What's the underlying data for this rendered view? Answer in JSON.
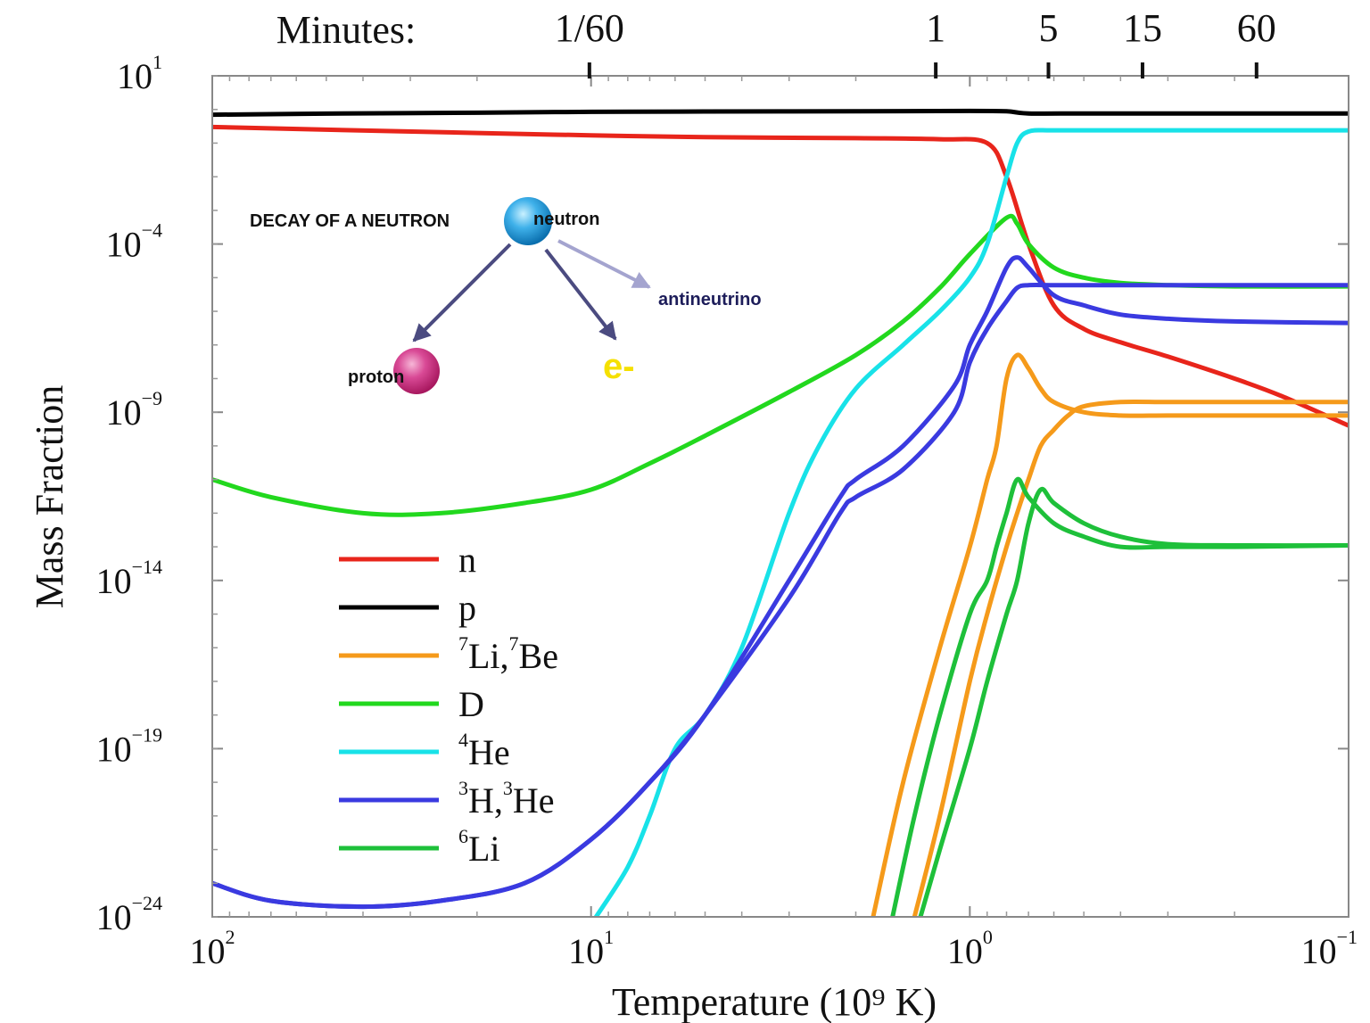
{
  "chart_data": {
    "type": "line",
    "xlabel": "Temperature (10⁹ K)",
    "ylabel": "Mass Fraction",
    "x_scale": "log",
    "y_scale": "log",
    "x_reversed": true,
    "xlim": [
      100,
      0.1
    ],
    "ylim": [
      1e-24,
      10
    ],
    "x_ticks": [
      {
        "value": 100,
        "base": "10",
        "exp": "2"
      },
      {
        "value": 10,
        "base": "10",
        "exp": "1"
      },
      {
        "value": 1,
        "base": "10",
        "exp": "0"
      },
      {
        "value": 0.1,
        "base": "10",
        "exp": "−1"
      }
    ],
    "y_ticks": [
      {
        "value": 10,
        "base": "10",
        "exp": "1"
      },
      {
        "value": 0.0001,
        "base": "10",
        "exp": "−4"
      },
      {
        "value": 1e-09,
        "base": "10",
        "exp": "−9"
      },
      {
        "value": 1e-14,
        "base": "10",
        "exp": "−14"
      },
      {
        "value": 1e-19,
        "base": "10",
        "exp": "−19"
      },
      {
        "value": 1e-24,
        "base": "10",
        "exp": "−24"
      }
    ],
    "top_axis": {
      "title": "Minutes:",
      "ticks": [
        {
          "label": "1/60",
          "temperature": 10.1
        },
        {
          "label": "1",
          "temperature": 1.23
        },
        {
          "label": "5",
          "temperature": 0.62
        },
        {
          "label": "15",
          "temperature": 0.35
        },
        {
          "label": "60",
          "temperature": 0.175
        }
      ]
    },
    "grid": false,
    "legend_position": "bottom-left",
    "series": [
      {
        "name": "n",
        "color": "#e8251b",
        "x": [
          100,
          50,
          20,
          10,
          5,
          2,
          1.2,
          0.9,
          0.8,
          0.7,
          0.6,
          0.5,
          0.4,
          0.3,
          0.2,
          0.15,
          0.1
        ],
        "y": [
          0.3,
          0.25,
          0.2,
          0.17,
          0.15,
          0.14,
          0.13,
          0.1,
          0.01,
          0.0001,
          1.5e-06,
          3e-07,
          1.2e-07,
          4.5e-08,
          1e-08,
          3e-09,
          4e-10
        ]
      },
      {
        "name": "p",
        "color": "#000000",
        "x": [
          100,
          50,
          20,
          10,
          5,
          2,
          1,
          0.8,
          0.7,
          0.5,
          0.3,
          0.1
        ],
        "y": [
          0.7,
          0.75,
          0.8,
          0.85,
          0.87,
          0.88,
          0.9,
          0.88,
          0.76,
          0.76,
          0.76,
          0.76
        ]
      },
      {
        "name": "⁷Li,⁷Be",
        "color": "#f59a1a",
        "x": [
          1.8,
          1.5,
          1.2,
          1.0,
          0.9,
          0.85,
          0.8,
          0.75,
          0.7,
          0.65,
          0.6,
          0.5,
          0.4,
          0.3,
          0.2,
          0.1
        ],
        "y": [
          1e-24,
          1e-20,
          1e-16,
          1e-13,
          1e-11,
          1e-10,
          1e-08,
          5e-08,
          2e-08,
          5e-09,
          2e-09,
          1e-09,
          8e-10,
          8e-10,
          8e-10,
          8e-10
        ]
      },
      {
        "name": "⁷Li,⁷Be",
        "color": "#f59a1a",
        "x": [
          1.4,
          1.2,
          1.0,
          0.9,
          0.8,
          0.75,
          0.7,
          0.65,
          0.6,
          0.55,
          0.5,
          0.4,
          0.3,
          0.2,
          0.1
        ],
        "y": [
          1e-24,
          1e-21,
          1e-17,
          1e-15,
          1e-13,
          1e-12,
          1e-11,
          1e-10,
          3e-10,
          8e-10,
          1.5e-09,
          2e-09,
          2e-09,
          2e-09,
          2e-09
        ]
      },
      {
        "name": "D",
        "color": "#22d81e",
        "x": [
          100,
          70,
          40,
          25,
          15,
          10,
          7,
          5,
          3,
          2,
          1.5,
          1.2,
          1,
          0.8,
          0.75,
          0.7,
          0.6,
          0.5,
          0.4,
          0.3,
          0.2,
          0.1
        ],
        "y": [
          1e-11,
          3e-12,
          1e-12,
          1e-12,
          2e-12,
          5e-12,
          3e-11,
          2e-10,
          4e-09,
          5e-08,
          5e-07,
          5e-06,
          5e-05,
          0.0006,
          0.0004,
          0.0001,
          2e-05,
          1e-05,
          7e-06,
          6e-06,
          5.5e-06,
          5.5e-06
        ]
      },
      {
        "name": "⁴He",
        "color": "#18e2e8",
        "x": [
          9.7,
          8,
          7,
          6,
          5,
          4,
          3,
          2.5,
          2,
          1.5,
          1.2,
          1,
          0.9,
          0.8,
          0.75,
          0.7,
          0.6,
          0.4,
          0.2,
          0.1
        ],
        "y": [
          1e-24,
          3e-23,
          1e-21,
          1e-19,
          1e-18,
          1e-16,
          1e-12,
          1e-10,
          5e-09,
          1e-07,
          1e-06,
          1e-05,
          0.0001,
          0.01,
          0.1,
          0.22,
          0.24,
          0.24,
          0.24,
          0.24
        ]
      },
      {
        "name": "³H,³He",
        "color": "#3a3ae0",
        "x": [
          100,
          70,
          40,
          25,
          15,
          10,
          7,
          5,
          3,
          2.2,
          2,
          1.5,
          1.1,
          1.0,
          0.9,
          0.8,
          0.75,
          0.7,
          0.6,
          0.5,
          0.4,
          0.3,
          0.2,
          0.1
        ],
        "y": [
          1e-23,
          3e-24,
          2e-24,
          3e-24,
          1e-23,
          2e-22,
          1e-20,
          1e-18,
          1e-14,
          3e-12,
          1e-11,
          1e-10,
          6e-09,
          1e-07,
          1e-06,
          2e-05,
          4e-05,
          2e-05,
          3e-06,
          1.5e-06,
          8e-07,
          6e-07,
          5e-07,
          4.5e-07
        ]
      },
      {
        "name": "³H,³He",
        "color": "#3a3ae0",
        "x": [
          100,
          70,
          40,
          25,
          15,
          10,
          7,
          5,
          3,
          2.2,
          2,
          1.5,
          1.1,
          1.0,
          0.9,
          0.8,
          0.75,
          0.7,
          0.6,
          0.5,
          0.4,
          0.3,
          0.2,
          0.1
        ],
        "y": [
          1e-23,
          3e-24,
          2e-24,
          3e-24,
          1e-23,
          2e-22,
          1e-20,
          1e-18,
          3e-15,
          1e-12,
          3e-12,
          2e-11,
          1e-09,
          3e-08,
          3e-07,
          2e-06,
          5e-06,
          6e-06,
          6e-06,
          6e-06,
          6e-06,
          6e-06,
          6e-06,
          6e-06
        ]
      },
      {
        "name": "⁶Li",
        "color": "#1ec03a",
        "x": [
          1.6,
          1.4,
          1.2,
          1.0,
          0.9,
          0.85,
          0.8,
          0.75,
          0.7,
          0.6,
          0.5,
          0.4,
          0.3,
          0.2,
          0.1
        ],
        "y": [
          1e-24,
          1e-21,
          1e-18,
          1e-15,
          1e-14,
          1e-13,
          1e-12,
          1e-11,
          3e-12,
          5e-13,
          2e-13,
          1e-13,
          1e-13,
          1e-13,
          1.1e-13
        ]
      },
      {
        "name": "⁶Li",
        "color": "#1ec03a",
        "x": [
          1.35,
          1.2,
          1.0,
          0.9,
          0.8,
          0.75,
          0.7,
          0.65,
          0.6,
          0.5,
          0.4,
          0.3,
          0.2,
          0.1
        ],
        "y": [
          1e-24,
          1e-22,
          1e-19,
          1e-17,
          1e-15,
          1e-14,
          5e-13,
          5e-12,
          2e-12,
          5e-13,
          2e-13,
          1.2e-13,
          1.1e-13,
          1.1e-13
        ]
      }
    ],
    "legend": [
      {
        "color": "#e8251b",
        "parts": [
          {
            "t": "n"
          }
        ]
      },
      {
        "color": "#000000",
        "parts": [
          {
            "t": "p"
          }
        ]
      },
      {
        "color": "#f59a1a",
        "parts": [
          {
            "t": "7",
            "sup": true
          },
          {
            "t": "Li,"
          },
          {
            "t": "7",
            "sup": true
          },
          {
            "t": "Be"
          }
        ]
      },
      {
        "color": "#22d81e",
        "parts": [
          {
            "t": "D"
          }
        ]
      },
      {
        "color": "#18e2e8",
        "parts": [
          {
            "t": "4",
            "sup": true
          },
          {
            "t": "He"
          }
        ]
      },
      {
        "color": "#3a3ae0",
        "parts": [
          {
            "t": "3",
            "sup": true
          },
          {
            "t": "H,"
          },
          {
            "t": "3",
            "sup": true
          },
          {
            "t": "He"
          }
        ]
      },
      {
        "color": "#1ec03a",
        "parts": [
          {
            "t": "6",
            "sup": true
          },
          {
            "t": "Li"
          }
        ]
      }
    ],
    "inset": {
      "title": "DECAY OF A NEUTRON",
      "neutron": "neutron",
      "proton": "proton",
      "electron": "e-",
      "antineutrino": "antineutrino"
    }
  }
}
